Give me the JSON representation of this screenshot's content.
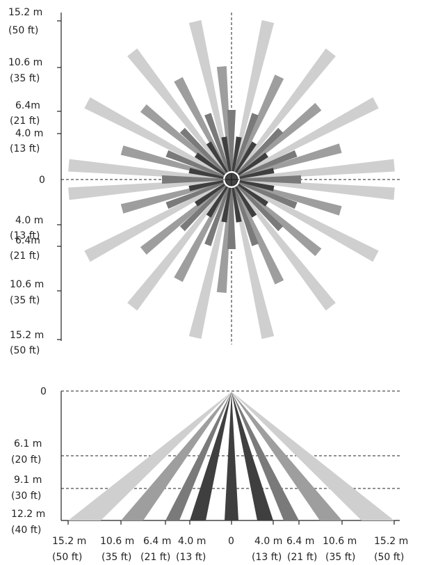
{
  "colors": {
    "dark": "#3f3f3f",
    "mid": "#7a7a7a",
    "light_mid": "#9e9e9e",
    "light": "#cfcfcf",
    "center": "#444444"
  },
  "top_view": {
    "y_labels": [
      {
        "m": "15.2 m",
        "ft": "(50 ft)"
      },
      {
        "m": "10.6 m",
        "ft": "(35 ft)"
      },
      {
        "m": "6.4m",
        "ft": "(21 ft)"
      },
      {
        "m": "4.0 m",
        "ft": "(13 ft)"
      },
      {
        "m": "0",
        "ft": ""
      },
      {
        "m": "4.0 m",
        "ft": "(13 ft)"
      },
      {
        "m": "6.4m",
        "ft": "(21 ft)"
      },
      {
        "m": "10.6 m",
        "ft": "(35 ft)"
      },
      {
        "m": "15.2 m",
        "ft": "(50 ft)"
      }
    ]
  },
  "side_view": {
    "y_labels": [
      {
        "m": "0",
        "ft": ""
      },
      {
        "m": "6.1 m",
        "ft": "(20 ft)"
      },
      {
        "m": "9.1 m",
        "ft": "(30 ft)"
      },
      {
        "m": "12.2 m",
        "ft": "(40 ft)"
      }
    ],
    "x_labels": [
      {
        "m": "15.2 m",
        "ft": "(50 ft)"
      },
      {
        "m": "10.6 m",
        "ft": "(35 ft)"
      },
      {
        "m": "6.4 m",
        "ft": "(21 ft)"
      },
      {
        "m": "4.0 m",
        "ft": "(13 ft)"
      },
      {
        "m": "0",
        "ft": ""
      },
      {
        "m": "4.0 m",
        "ft": "(13 ft)"
      },
      {
        "m": "6.4 m",
        "ft": "(21 ft)"
      },
      {
        "m": "10.6 m",
        "ft": "(35 ft)"
      },
      {
        "m": "15.2 m",
        "ft": "(50 ft)"
      }
    ]
  }
}
